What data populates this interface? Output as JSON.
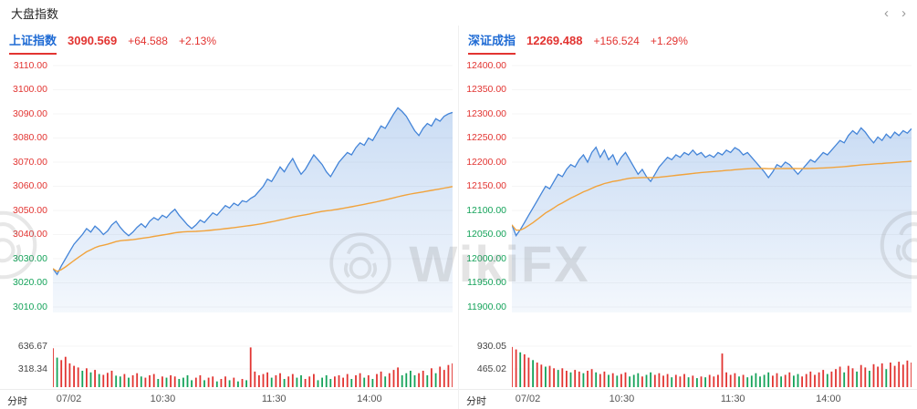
{
  "topbar": {
    "title": "大盘指数",
    "nav_prev": "‹",
    "nav_next": "›"
  },
  "watermark": {
    "text": "WikiFX"
  },
  "colors": {
    "up": "#e23431",
    "down": "#15a35a",
    "line": "#4384d8",
    "avg": "#f1a33c",
    "tab": "#1f6bd4",
    "axis_text": "#555555"
  },
  "panels": [
    {
      "name": "上证指数",
      "price": "3090.569",
      "change": "+64.588",
      "change_pct": "+2.13%",
      "corner_label": "分时"
    },
    {
      "name": "深证成指",
      "price": "12269.488",
      "change": "+156.524",
      "change_pct": "+1.29%",
      "corner_label": "分时"
    }
  ],
  "chart_data": [
    {
      "type": "line",
      "title": "上证指数",
      "x_ticks": [
        "07/02",
        "10:30",
        "11:30",
        "14:00"
      ],
      "x_tick_pos": [
        0.04,
        0.275,
        0.553,
        0.792
      ],
      "ylim": [
        3010,
        3110
      ],
      "y_ticks": [
        {
          "t": "3110.00",
          "up": true
        },
        {
          "t": "3100.00",
          "up": true
        },
        {
          "t": "3090.00",
          "up": true
        },
        {
          "t": "3080.00",
          "up": true
        },
        {
          "t": "3070.00",
          "up": true
        },
        {
          "t": "3060.00",
          "up": true
        },
        {
          "t": "3050.00",
          "up": true
        },
        {
          "t": "3040.00",
          "up": true
        },
        {
          "t": "3030.00",
          "up": false
        },
        {
          "t": "3020.00",
          "up": false
        },
        {
          "t": "3010.00",
          "up": false
        }
      ],
      "series": [
        {
          "name": "price",
          "values": [
            3025.9,
            3023.5,
            3027,
            3030,
            3033,
            3036,
            3038,
            3040,
            3042.5,
            3041,
            3043.5,
            3042,
            3040,
            3041.5,
            3044,
            3045.5,
            3043,
            3041,
            3039.5,
            3041,
            3043,
            3044.5,
            3043,
            3045.5,
            3047,
            3046,
            3048,
            3047,
            3049,
            3050.5,
            3048,
            3046,
            3044,
            3042.5,
            3044,
            3046,
            3045,
            3047,
            3049,
            3048,
            3050,
            3052,
            3051,
            3053,
            3052,
            3054,
            3053.5,
            3055,
            3056,
            3058,
            3060,
            3063,
            3062,
            3065,
            3068,
            3066,
            3069,
            3071.5,
            3068,
            3065,
            3067,
            3070,
            3073,
            3071,
            3069,
            3066,
            3064,
            3067,
            3070,
            3072,
            3074,
            3073,
            3076,
            3078,
            3077,
            3080,
            3079,
            3082,
            3085,
            3084,
            3087,
            3090,
            3092.5,
            3091,
            3089,
            3086,
            3083,
            3081,
            3084,
            3086,
            3085,
            3088,
            3087,
            3089,
            3090,
            3090.6
          ]
        },
        {
          "name": "avg_price",
          "derived": "running_mean_of_price"
        }
      ],
      "volume": {
        "labels": [
          "636.67",
          "318.34"
        ],
        "max": 636.67,
        "values": [
          0.95,
          -0.72,
          0.66,
          0.74,
          0.58,
          0.52,
          0.48,
          -0.4,
          0.46,
          -0.36,
          0.42,
          -0.32,
          0.3,
          0.35,
          0.4,
          -0.28,
          -0.26,
          0.32,
          -0.23,
          0.29,
          0.34,
          -0.26,
          0.23,
          0.29,
          0.32,
          -0.2,
          0.26,
          -0.23,
          0.29,
          0.26,
          -0.2,
          -0.23,
          -0.29,
          -0.17,
          0.23,
          0.29,
          -0.17,
          0.23,
          0.26,
          -0.14,
          0.2,
          0.26,
          -0.17,
          0.23,
          -0.14,
          0.2,
          -0.17,
          0.97,
          0.38,
          0.29,
          0.32,
          0.36,
          -0.23,
          0.29,
          0.34,
          -0.2,
          0.26,
          0.32,
          -0.23,
          -0.29,
          0.2,
          0.26,
          0.32,
          -0.17,
          -0.23,
          -0.29,
          -0.2,
          0.26,
          0.29,
          0.23,
          0.32,
          -0.2,
          0.29,
          0.34,
          -0.23,
          0.29,
          -0.2,
          0.32,
          0.38,
          -0.26,
          0.34,
          0.42,
          0.48,
          -0.29,
          -0.34,
          -0.4,
          -0.29,
          0.34,
          0.4,
          -0.29,
          0.46,
          -0.34,
          0.5,
          0.42,
          0.54,
          0.58
        ]
      }
    },
    {
      "type": "line",
      "title": "深证成指",
      "x_ticks": [
        "07/02",
        "10:30",
        "11:30",
        "14:00"
      ],
      "x_tick_pos": [
        0.04,
        0.275,
        0.553,
        0.792
      ],
      "ylim": [
        11900,
        12400
      ],
      "y_ticks": [
        {
          "t": "12400.00",
          "up": true
        },
        {
          "t": "12350.00",
          "up": true
        },
        {
          "t": "12300.00",
          "up": true
        },
        {
          "t": "12250.00",
          "up": true
        },
        {
          "t": "12200.00",
          "up": true
        },
        {
          "t": "12150.00",
          "up": true
        },
        {
          "t": "12100.00",
          "up": false
        },
        {
          "t": "12050.00",
          "up": false
        },
        {
          "t": "12000.00",
          "up": false
        },
        {
          "t": "11950.00",
          "up": false
        },
        {
          "t": "11900.00",
          "up": false
        }
      ],
      "series": [
        {
          "name": "price",
          "values": [
            12070,
            12048,
            12060,
            12075,
            12090,
            12105,
            12120,
            12135,
            12150,
            12145,
            12160,
            12175,
            12170,
            12185,
            12195,
            12190,
            12205,
            12215,
            12200,
            12220,
            12231,
            12210,
            12225,
            12205,
            12215,
            12195,
            12210,
            12220,
            12205,
            12190,
            12175,
            12185,
            12170,
            12160,
            12175,
            12190,
            12200,
            12210,
            12205,
            12215,
            12210,
            12220,
            12215,
            12225,
            12215,
            12220,
            12210,
            12215,
            12210,
            12220,
            12215,
            12225,
            12220,
            12230,
            12225,
            12215,
            12220,
            12210,
            12200,
            12190,
            12180,
            12168,
            12180,
            12195,
            12190,
            12200,
            12195,
            12185,
            12175,
            12185,
            12195,
            12205,
            12200,
            12210,
            12220,
            12215,
            12225,
            12235,
            12245,
            12240,
            12255,
            12265,
            12258,
            12271,
            12262,
            12250,
            12240,
            12252,
            12245,
            12258,
            12250,
            12262,
            12255,
            12265,
            12260,
            12269.5
          ]
        },
        {
          "name": "avg_price",
          "derived": "running_mean_of_price"
        }
      ],
      "volume": {
        "labels": [
          "930.05",
          "465.02"
        ],
        "max": 930.05,
        "values": [
          0.98,
          0.92,
          -0.85,
          0.8,
          0.72,
          -0.66,
          0.6,
          0.55,
          -0.5,
          0.52,
          0.46,
          -0.42,
          0.46,
          0.4,
          -0.36,
          0.42,
          0.38,
          -0.34,
          0.4,
          0.44,
          -0.36,
          0.32,
          0.38,
          -0.3,
          0.34,
          -0.28,
          0.32,
          0.36,
          -0.26,
          -0.3,
          -0.34,
          0.26,
          -0.3,
          -0.36,
          0.3,
          0.34,
          0.28,
          0.32,
          -0.24,
          0.3,
          0.26,
          0.32,
          -0.24,
          0.28,
          -0.22,
          0.26,
          -0.24,
          0.3,
          0.26,
          0.3,
          0.82,
          0.36,
          0.3,
          0.34,
          -0.26,
          0.3,
          -0.24,
          -0.28,
          -0.34,
          -0.26,
          -0.3,
          -0.36,
          0.28,
          0.34,
          -0.26,
          0.3,
          0.36,
          -0.28,
          -0.32,
          0.26,
          0.32,
          0.38,
          0.3,
          0.36,
          0.42,
          -0.32,
          0.38,
          0.44,
          0.5,
          -0.36,
          0.52,
          0.46,
          -0.38,
          0.54,
          0.48,
          -0.4,
          0.56,
          0.5,
          0.58,
          -0.44,
          0.6,
          0.52,
          0.62,
          0.55,
          0.65,
          0.6
        ]
      }
    }
  ]
}
